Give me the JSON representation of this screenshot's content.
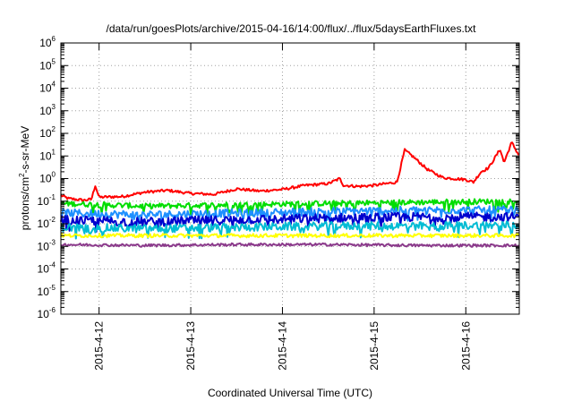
{
  "chart_data": {
    "type": "line",
    "title": "/data/run/goesPlots/archive/2015-04-16/14:00/flux/../flux/5daysEarthFluxes.txt",
    "xlabel": "Coordinated Universal Time (UTC)",
    "ylabel": {
      "base": "protons/cm",
      "exp": "2",
      "rest": "-s-sr-MeV"
    },
    "y_scale": "log",
    "ylim": [
      1e-06,
      1000000.0
    ],
    "y_ticks": [
      {
        "mant": "10",
        "exp": "6",
        "value": 1000000.0
      },
      {
        "mant": "10",
        "exp": "5",
        "value": 100000.0
      },
      {
        "mant": "10",
        "exp": "4",
        "value": 10000.0
      },
      {
        "mant": "10",
        "exp": "3",
        "value": 1000.0
      },
      {
        "mant": "10",
        "exp": "2",
        "value": 100.0
      },
      {
        "mant": "10",
        "exp": "1",
        "value": 10.0
      },
      {
        "mant": "10",
        "exp": "0",
        "value": 1.0
      },
      {
        "mant": "10",
        "exp": "-1",
        "value": 0.1
      },
      {
        "mant": "10",
        "exp": "-2",
        "value": 0.01
      },
      {
        "mant": "10",
        "exp": "-3",
        "value": 0.001
      },
      {
        "mant": "10",
        "exp": "-4",
        "value": 0.0001
      },
      {
        "mant": "10",
        "exp": "-5",
        "value": 1e-05
      },
      {
        "mant": "10",
        "exp": "-6",
        "value": 1e-06
      }
    ],
    "x_range": [
      "2015-04-11 14:00",
      "2015-04-16 14:00"
    ],
    "x_ticks": [
      {
        "label": "2015-4-12",
        "time": "2015-04-12 00:00"
      },
      {
        "label": "2015-4-13",
        "time": "2015-04-13 00:00"
      },
      {
        "label": "2015-4-14",
        "time": "2015-04-14 00:00"
      },
      {
        "label": "2015-4-15",
        "time": "2015-04-15 00:00"
      },
      {
        "label": "2015-4-16",
        "time": "2015-04-16 00:00"
      }
    ],
    "grid": true,
    "series": [
      {
        "color": "#ff0000",
        "points": [
          [
            "2015-04-11 14:00",
            0.18
          ],
          [
            "2015-04-11 16:00",
            0.13
          ],
          [
            "2015-04-11 18:00",
            0.12
          ],
          [
            "2015-04-11 20:00",
            0.11
          ],
          [
            "2015-04-11 22:00",
            0.12
          ],
          [
            "2015-04-11 23:00",
            0.5
          ],
          [
            "2015-04-12 00:00",
            0.15
          ],
          [
            "2015-04-12 06:00",
            0.16
          ],
          [
            "2015-04-12 12:00",
            0.25
          ],
          [
            "2015-04-12 18:00",
            0.3
          ],
          [
            "2015-04-13 00:00",
            0.22
          ],
          [
            "2015-04-13 06:00",
            0.2
          ],
          [
            "2015-04-13 12:00",
            0.35
          ],
          [
            "2015-04-13 18:00",
            0.28
          ],
          [
            "2015-04-14 00:00",
            0.33
          ],
          [
            "2015-04-14 06:00",
            0.5
          ],
          [
            "2015-04-14 12:00",
            0.6
          ],
          [
            "2015-04-14 15:00",
            1.0
          ],
          [
            "2015-04-14 16:00",
            0.5
          ],
          [
            "2015-04-14 20:00",
            0.45
          ],
          [
            "2015-04-15 00:00",
            0.5
          ],
          [
            "2015-04-15 06:00",
            0.7
          ],
          [
            "2015-04-15 08:00",
            18
          ],
          [
            "2015-04-15 10:00",
            10
          ],
          [
            "2015-04-15 14:00",
            2.5
          ],
          [
            "2015-04-15 18:00",
            1.1
          ],
          [
            "2015-04-16 00:00",
            0.9
          ],
          [
            "2015-04-16 02:00",
            0.7
          ],
          [
            "2015-04-16 04:00",
            2.0
          ],
          [
            "2015-04-16 06:00",
            3.0
          ],
          [
            "2015-04-16 09:00",
            20
          ],
          [
            "2015-04-16 10:00",
            5.0
          ],
          [
            "2015-04-16 12:00",
            40
          ],
          [
            "2015-04-16 14:00",
            10
          ]
        ]
      },
      {
        "color": "#00dd00",
        "points": [
          [
            "2015-04-11 14:00",
            0.08
          ],
          [
            "2015-04-12 12:00",
            0.06
          ],
          [
            "2015-04-13 12:00",
            0.07
          ],
          [
            "2015-04-14 12:00",
            0.08
          ],
          [
            "2015-04-15 12:00",
            0.09
          ],
          [
            "2015-04-16 14:00",
            0.1
          ]
        ]
      },
      {
        "color": "#1e90ff",
        "points": [
          [
            "2015-04-11 14:00",
            0.03
          ],
          [
            "2015-04-12 12:00",
            0.025
          ],
          [
            "2015-04-13 12:00",
            0.03
          ],
          [
            "2015-04-14 12:00",
            0.035
          ],
          [
            "2015-04-15 12:00",
            0.04
          ],
          [
            "2015-04-16 14:00",
            0.04
          ]
        ]
      },
      {
        "color": "#0000cd",
        "points": [
          [
            "2015-04-11 14:00",
            0.015
          ],
          [
            "2015-04-12 12:00",
            0.012
          ],
          [
            "2015-04-13 12:00",
            0.015
          ],
          [
            "2015-04-14 12:00",
            0.018
          ],
          [
            "2015-04-15 12:00",
            0.02
          ],
          [
            "2015-04-16 14:00",
            0.02
          ]
        ]
      },
      {
        "color": "#00bcd4",
        "points": [
          [
            "2015-04-11 14:00",
            0.007
          ],
          [
            "2015-04-12 12:00",
            0.006
          ],
          [
            "2015-04-13 12:00",
            0.007
          ],
          [
            "2015-04-14 12:00",
            0.008
          ],
          [
            "2015-04-15 12:00",
            0.008
          ],
          [
            "2015-04-16 14:00",
            0.009
          ]
        ]
      },
      {
        "color": "#ffff00",
        "points": [
          [
            "2015-04-11 14:00",
            0.003
          ],
          [
            "2015-04-12 12:00",
            0.003
          ],
          [
            "2015-04-13 12:00",
            0.003
          ],
          [
            "2015-04-14 12:00",
            0.003
          ],
          [
            "2015-04-15 12:00",
            0.003
          ],
          [
            "2015-04-16 14:00",
            0.003
          ]
        ]
      },
      {
        "color": "#8b3a8b",
        "points": [
          [
            "2015-04-11 14:00",
            0.0012
          ],
          [
            "2015-04-12 12:00",
            0.0011
          ],
          [
            "2015-04-13 12:00",
            0.0012
          ],
          [
            "2015-04-14 12:00",
            0.0012
          ],
          [
            "2015-04-15 12:00",
            0.0011
          ],
          [
            "2015-04-16 14:00",
            0.0011
          ]
        ]
      }
    ]
  }
}
